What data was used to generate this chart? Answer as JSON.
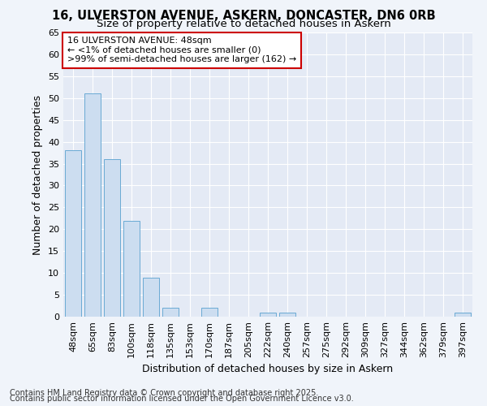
{
  "title_line1": "16, ULVERSTON AVENUE, ASKERN, DONCASTER, DN6 0RB",
  "title_line2": "Size of property relative to detached houses in Askern",
  "xlabel": "Distribution of detached houses by size in Askern",
  "ylabel": "Number of detached properties",
  "bar_labels": [
    "48sqm",
    "65sqm",
    "83sqm",
    "100sqm",
    "118sqm",
    "135sqm",
    "153sqm",
    "170sqm",
    "187sqm",
    "205sqm",
    "222sqm",
    "240sqm",
    "257sqm",
    "275sqm",
    "292sqm",
    "309sqm",
    "327sqm",
    "344sqm",
    "362sqm",
    "379sqm",
    "397sqm"
  ],
  "bar_values": [
    38,
    51,
    36,
    22,
    9,
    2,
    0,
    2,
    0,
    0,
    1,
    1,
    0,
    0,
    0,
    0,
    0,
    0,
    0,
    0,
    1
  ],
  "bar_color": "#ccddf0",
  "bar_edge_color": "#6aaad4",
  "annotation_line1": "16 ULVERSTON AVENUE: 48sqm",
  "annotation_line2": "← <1% of detached houses are smaller (0)",
  "annotation_line3": ">99% of semi-detached houses are larger (162) →",
  "annotation_box_color": "#ffffff",
  "annotation_border_color": "#cc0000",
  "ylim": [
    0,
    65
  ],
  "yticks": [
    0,
    5,
    10,
    15,
    20,
    25,
    30,
    35,
    40,
    45,
    50,
    55,
    60,
    65
  ],
  "footer_line1": "Contains HM Land Registry data © Crown copyright and database right 2025.",
  "footer_line2": "Contains public sector information licensed under the Open Government Licence v3.0.",
  "fig_bg_color": "#f0f4fa",
  "plot_bg_color": "#e4eaf5",
  "grid_color": "#ffffff",
  "title_fontsize": 10.5,
  "subtitle_fontsize": 9.5,
  "tick_fontsize": 8,
  "label_fontsize": 9,
  "annotation_fontsize": 8,
  "footer_fontsize": 7
}
